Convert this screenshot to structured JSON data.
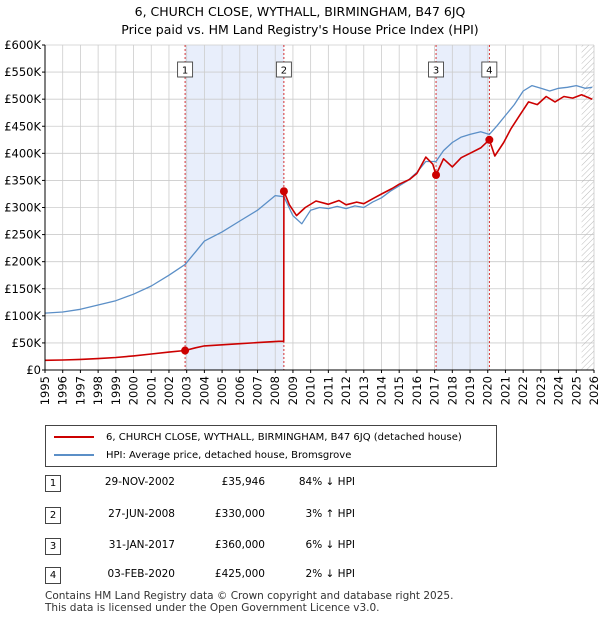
{
  "title": "6, CHURCH CLOSE, WYTHALL, BIRMINGHAM, B47 6JQ",
  "subtitle": "Price paid vs. HM Land Registry's House Price Index (HPI)",
  "colors": {
    "property": "#cc0000",
    "hpi": "#5b8fc7",
    "shade": "#e8eefb",
    "grid": "#cccccc"
  },
  "chart_data": {
    "type": "line",
    "xlim": [
      1995,
      2026
    ],
    "ylim": [
      0,
      600000
    ],
    "x_ticks": [
      "1995",
      "1996",
      "1997",
      "1998",
      "1999",
      "2000",
      "2001",
      "2002",
      "2003",
      "2004",
      "2005",
      "2006",
      "2007",
      "2008",
      "2009",
      "2010",
      "2011",
      "2012",
      "2013",
      "2014",
      "2015",
      "2016",
      "2017",
      "2018",
      "2019",
      "2020",
      "2021",
      "2022",
      "2023",
      "2024",
      "2025",
      "2026"
    ],
    "y_ticks": [
      {
        "value": 0,
        "label": "£0"
      },
      {
        "value": 50000,
        "label": "£50K"
      },
      {
        "value": 100000,
        "label": "£100K"
      },
      {
        "value": 150000,
        "label": "£150K"
      },
      {
        "value": 200000,
        "label": "£200K"
      },
      {
        "value": 250000,
        "label": "£250K"
      },
      {
        "value": 300000,
        "label": "£300K"
      },
      {
        "value": 350000,
        "label": "£350K"
      },
      {
        "value": 400000,
        "label": "£400K"
      },
      {
        "value": 450000,
        "label": "£450K"
      },
      {
        "value": 500000,
        "label": "£500K"
      },
      {
        "value": 550000,
        "label": "£550K"
      },
      {
        "value": 600000,
        "label": "£600K"
      }
    ],
    "shaded_ranges": [
      [
        2002.91,
        2008.49
      ],
      [
        2017.08,
        2020.09
      ]
    ],
    "future_hatch_from": 2025.3,
    "markers": [
      {
        "label": "1",
        "x": 2002.91
      },
      {
        "label": "2",
        "x": 2008.49
      },
      {
        "label": "3",
        "x": 2017.08
      },
      {
        "label": "4",
        "x": 2020.09
      }
    ],
    "sales": [
      {
        "x": 2002.91,
        "y": 35946
      },
      {
        "x": 2008.49,
        "y": 330000
      },
      {
        "x": 2017.08,
        "y": 360000
      },
      {
        "x": 2020.09,
        "y": 425000
      }
    ],
    "series": [
      {
        "name": "6, CHURCH CLOSE, WYTHALL, BIRMINGHAM, B47 6JQ (detached house)",
        "color": "#cc0000",
        "points": [
          [
            1995,
            18000
          ],
          [
            1996,
            18500
          ],
          [
            1997,
            19500
          ],
          [
            1998,
            21000
          ],
          [
            1999,
            23000
          ],
          [
            2000,
            26000
          ],
          [
            2001,
            29500
          ],
          [
            2002,
            33000
          ],
          [
            2002.91,
            35946
          ],
          [
            2003.5,
            41000
          ],
          [
            2004,
            44500
          ],
          [
            2005,
            46500
          ],
          [
            2006,
            48500
          ],
          [
            2007,
            50500
          ],
          [
            2008.2,
            53000
          ],
          [
            2008.48,
            53000
          ],
          [
            2008.49,
            330000
          ],
          [
            2008.8,
            305000
          ],
          [
            2009.2,
            285000
          ],
          [
            2009.7,
            300000
          ],
          [
            2010.3,
            312000
          ],
          [
            2011,
            306000
          ],
          [
            2011.6,
            313000
          ],
          [
            2012,
            305000
          ],
          [
            2012.6,
            310000
          ],
          [
            2013,
            307000
          ],
          [
            2013.6,
            318000
          ],
          [
            2014,
            325000
          ],
          [
            2014.6,
            335000
          ],
          [
            2015,
            343000
          ],
          [
            2015.6,
            352000
          ],
          [
            2016,
            363000
          ],
          [
            2016.5,
            393000
          ],
          [
            2016.9,
            380000
          ],
          [
            2017.08,
            360000
          ],
          [
            2017.5,
            390000
          ],
          [
            2018,
            375000
          ],
          [
            2018.5,
            392000
          ],
          [
            2019,
            400000
          ],
          [
            2019.6,
            410000
          ],
          [
            2020.09,
            425000
          ],
          [
            2020.4,
            395000
          ],
          [
            2020.9,
            420000
          ],
          [
            2021.3,
            445000
          ],
          [
            2021.8,
            470000
          ],
          [
            2022.3,
            495000
          ],
          [
            2022.8,
            490000
          ],
          [
            2023.3,
            505000
          ],
          [
            2023.8,
            495000
          ],
          [
            2024.3,
            505000
          ],
          [
            2024.8,
            502000
          ],
          [
            2025.3,
            508000
          ],
          [
            2025.9,
            500000
          ]
        ]
      },
      {
        "name": "HPI: Average price, detached house, Bromsgrove",
        "color": "#5b8fc7",
        "points": [
          [
            1995,
            105000
          ],
          [
            1996,
            107000
          ],
          [
            1997,
            112000
          ],
          [
            1998,
            120000
          ],
          [
            1999,
            128000
          ],
          [
            2000,
            140000
          ],
          [
            2001,
            155000
          ],
          [
            2002,
            175000
          ],
          [
            2002.91,
            195000
          ],
          [
            2003.5,
            218000
          ],
          [
            2004,
            238000
          ],
          [
            2005,
            255000
          ],
          [
            2006,
            275000
          ],
          [
            2007,
            295000
          ],
          [
            2008,
            322000
          ],
          [
            2008.49,
            320000
          ],
          [
            2009,
            285000
          ],
          [
            2009.5,
            270000
          ],
          [
            2010,
            295000
          ],
          [
            2010.5,
            300000
          ],
          [
            2011,
            298000
          ],
          [
            2011.5,
            302000
          ],
          [
            2012,
            298000
          ],
          [
            2012.5,
            303000
          ],
          [
            2013,
            300000
          ],
          [
            2013.5,
            310000
          ],
          [
            2014,
            318000
          ],
          [
            2014.5,
            330000
          ],
          [
            2015,
            340000
          ],
          [
            2015.5,
            350000
          ],
          [
            2016,
            365000
          ],
          [
            2016.5,
            385000
          ],
          [
            2017.08,
            385000
          ],
          [
            2017.5,
            405000
          ],
          [
            2018,
            420000
          ],
          [
            2018.5,
            430000
          ],
          [
            2019,
            435000
          ],
          [
            2019.6,
            440000
          ],
          [
            2020.09,
            435000
          ],
          [
            2020.5,
            450000
          ],
          [
            2021,
            470000
          ],
          [
            2021.5,
            490000
          ],
          [
            2022,
            515000
          ],
          [
            2022.5,
            525000
          ],
          [
            2023,
            520000
          ],
          [
            2023.5,
            515000
          ],
          [
            2024,
            520000
          ],
          [
            2024.5,
            522000
          ],
          [
            2025,
            525000
          ],
          [
            2025.5,
            520000
          ],
          [
            2025.9,
            522000
          ]
        ]
      }
    ]
  },
  "legend": {
    "property": "6, CHURCH CLOSE, WYTHALL, BIRMINGHAM, B47 6JQ (detached house)",
    "hpi": "HPI: Average price, detached house, Bromsgrove"
  },
  "transactions": [
    {
      "num": "1",
      "date": "29-NOV-2002",
      "price": "£35,946",
      "pct": "84% ↓ HPI"
    },
    {
      "num": "2",
      "date": "27-JUN-2008",
      "price": "£330,000",
      "pct": "3% ↑ HPI"
    },
    {
      "num": "3",
      "date": "31-JAN-2017",
      "price": "£360,000",
      "pct": "6% ↓ HPI"
    },
    {
      "num": "4",
      "date": "03-FEB-2020",
      "price": "£425,000",
      "pct": "2% ↓ HPI"
    }
  ],
  "footer": {
    "line1": "Contains HM Land Registry data © Crown copyright and database right 2025.",
    "line2": "This data is licensed under the Open Government Licence v3.0."
  }
}
